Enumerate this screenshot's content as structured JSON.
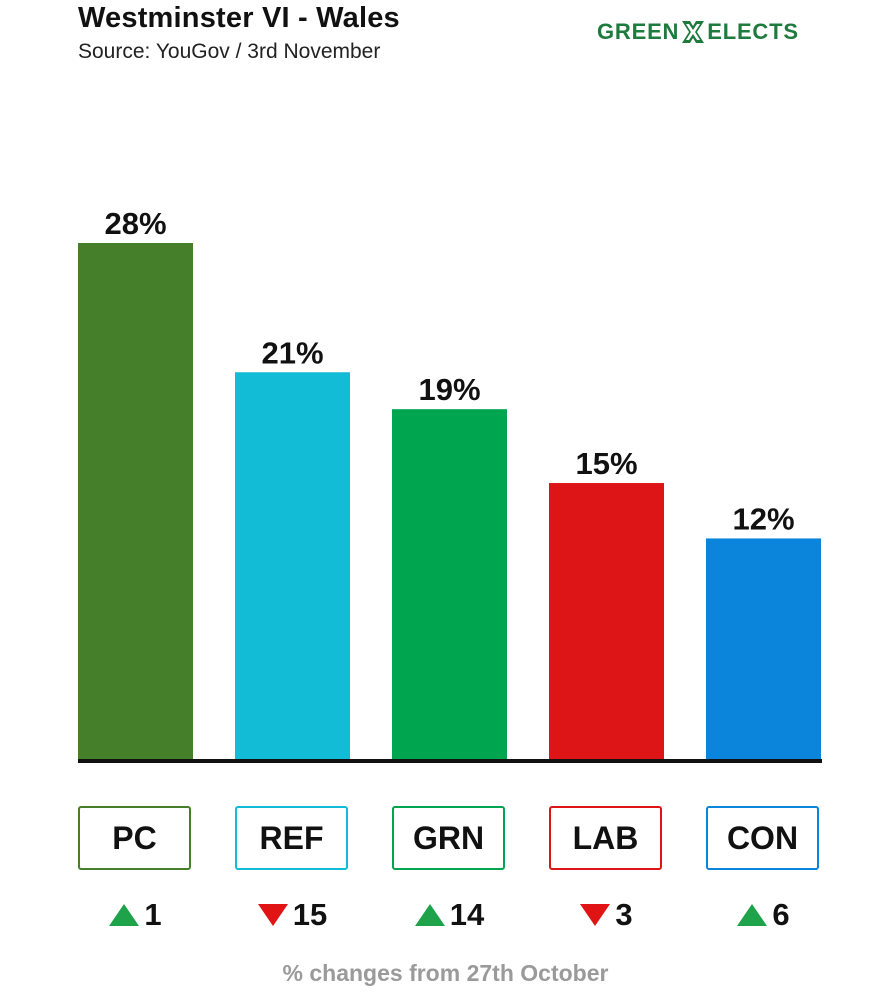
{
  "header": {
    "title": "Westminster VI - Wales",
    "subtitle": "Source: YouGov / 3rd November"
  },
  "brand": {
    "left": "GREEN",
    "right": "ELECTS",
    "icon": "x-cross-icon",
    "color": "#1f7a3e"
  },
  "chart_data": {
    "type": "bar",
    "title": "Westminster VI - Wales",
    "subtitle": "Source: YouGov / 3rd November",
    "categories": [
      "PC",
      "REF",
      "GRN",
      "LAB",
      "CON"
    ],
    "values": [
      28,
      21,
      19,
      15,
      12
    ],
    "value_labels": [
      "28%",
      "21%",
      "19%",
      "15%",
      "12%"
    ],
    "colors": [
      "#467f2a",
      "#12bcd6",
      "#00a550",
      "#dd1517",
      "#0b84db"
    ],
    "changes": [
      {
        "direction": "up",
        "amount": "1"
      },
      {
        "direction": "down",
        "amount": "15"
      },
      {
        "direction": "up",
        "amount": "14"
      },
      {
        "direction": "down",
        "amount": "3"
      },
      {
        "direction": "up",
        "amount": "6"
      }
    ],
    "xlabel": "",
    "ylabel": "",
    "ylim": [
      0,
      28
    ],
    "unit": "%",
    "grid": false,
    "legend": "none"
  },
  "changes": [
    {
      "party": "PC",
      "amount": "1",
      "icon": "up-triangle-icon",
      "color": "#1fa34a"
    },
    {
      "party": "REF",
      "amount": "15",
      "icon": "down-triangle-icon",
      "color": "#e01414"
    },
    {
      "party": "GRN",
      "amount": "14",
      "icon": "up-triangle-icon",
      "color": "#1fa34a"
    },
    {
      "party": "LAB",
      "amount": "3",
      "icon": "down-triangle-icon",
      "color": "#e01414"
    },
    {
      "party": "CON",
      "amount": "6",
      "icon": "up-triangle-icon",
      "color": "#1fa34a"
    }
  ],
  "footer": {
    "note": "% changes from 27th October"
  }
}
